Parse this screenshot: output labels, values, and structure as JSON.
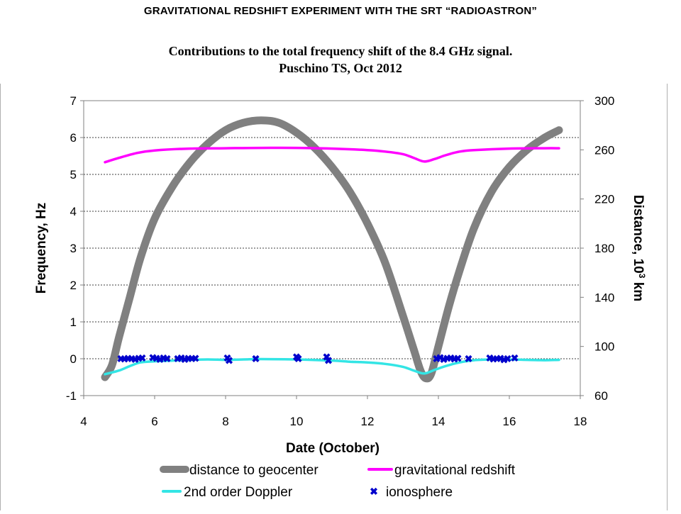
{
  "header": {
    "top_title": "GRAVITATIONAL REDSHIFT EXPERIMENT WITH THE SRT “RADIOASTRON”",
    "subtitle_line1": "Contributions to the total frequency shift of the 8.4 GHz signal.",
    "subtitle_line2": "Puschino TS, Oct 2012"
  },
  "chart_data": {
    "type": "line",
    "xlabel": "Date (October)",
    "ylabel": "Frequency, Hz",
    "y2label": "Distance, 10",
    "y2label_sup": "3",
    "y2label_suffix": " km",
    "xlim": [
      4,
      18
    ],
    "ylim": [
      -1,
      7
    ],
    "y2lim": [
      60,
      300
    ],
    "x_ticks": [
      4,
      6,
      8,
      10,
      12,
      14,
      16,
      18
    ],
    "y_ticks": [
      -1,
      0,
      1,
      2,
      3,
      4,
      5,
      6,
      7
    ],
    "y2_ticks": [
      60,
      100,
      140,
      180,
      220,
      260,
      300
    ],
    "grid": "horizontal dashed at y ticks",
    "legend_position": "bottom",
    "series": [
      {
        "name": "distance to geocenter",
        "axis": "right",
        "color": "#808080",
        "style": "thick-line",
        "x": [
          4.6,
          4.8,
          5.0,
          5.3,
          5.6,
          6.0,
          6.5,
          7.0,
          7.5,
          8.0,
          8.5,
          9.0,
          9.5,
          10.0,
          10.5,
          11.0,
          11.5,
          12.0,
          12.5,
          13.0,
          13.3,
          13.5,
          13.65,
          13.8,
          14.0,
          14.3,
          14.6,
          15.0,
          15.5,
          16.0,
          16.5,
          17.0,
          17.4
        ],
        "y": [
          75,
          85,
          108,
          140,
          172,
          204,
          230,
          250,
          265,
          276,
          282,
          284,
          282,
          274,
          262,
          246,
          226,
          200,
          168,
          125,
          98,
          80,
          74,
          78,
          100,
          133,
          162,
          196,
          226,
          246,
          260,
          270,
          276
        ]
      },
      {
        "name": "gravitational redshift",
        "axis": "left",
        "color": "#ff00ff",
        "style": "line",
        "x": [
          4.6,
          5.0,
          5.5,
          6.0,
          7.0,
          8.0,
          9.0,
          10.0,
          11.0,
          12.0,
          12.5,
          13.0,
          13.3,
          13.6,
          13.9,
          14.2,
          14.6,
          15.0,
          16.0,
          17.0,
          17.4
        ],
        "y": [
          5.33,
          5.45,
          5.58,
          5.65,
          5.7,
          5.71,
          5.72,
          5.72,
          5.7,
          5.66,
          5.62,
          5.55,
          5.45,
          5.35,
          5.42,
          5.52,
          5.62,
          5.66,
          5.7,
          5.71,
          5.71
        ]
      },
      {
        "name": "2nd order Doppler",
        "axis": "left",
        "color": "#33e5e5",
        "style": "line",
        "x": [
          4.6,
          5.0,
          5.3,
          5.6,
          6.0,
          6.5,
          7.0,
          7.5,
          8.0,
          8.5,
          9.0,
          10.0,
          11.0,
          11.5,
          12.0,
          12.5,
          13.0,
          13.3,
          13.6,
          13.9,
          14.2,
          14.6,
          15.0,
          15.5,
          16.0,
          16.5,
          17.0,
          17.4
        ],
        "y": [
          -0.42,
          -0.32,
          -0.2,
          -0.1,
          -0.07,
          -0.05,
          -0.03,
          -0.02,
          -0.03,
          -0.02,
          -0.01,
          -0.02,
          -0.05,
          -0.08,
          -0.1,
          -0.14,
          -0.22,
          -0.32,
          -0.4,
          -0.3,
          -0.2,
          -0.1,
          -0.04,
          -0.02,
          -0.02,
          -0.03,
          -0.04,
          -0.03
        ]
      },
      {
        "name": "ionosphere",
        "axis": "left",
        "color": "#0000cc",
        "style": "markers",
        "x": [
          5.05,
          5.15,
          5.25,
          5.35,
          5.45,
          5.55,
          5.65,
          5.95,
          6.05,
          6.15,
          6.25,
          6.35,
          6.65,
          6.75,
          6.85,
          6.95,
          7.05,
          7.15,
          8.05,
          8.1,
          8.85,
          10.0,
          10.05,
          10.85,
          10.9,
          13.95,
          14.05,
          14.15,
          14.25,
          14.35,
          14.45,
          14.55,
          14.85,
          15.45,
          15.55,
          15.65,
          15.75,
          15.85,
          15.95,
          16.15
        ],
        "y": [
          0.0,
          -0.01,
          0.01,
          0.0,
          -0.02,
          0.01,
          0.02,
          0.03,
          0.01,
          -0.02,
          0.02,
          0.0,
          0.0,
          0.02,
          -0.02,
          0.01,
          0.0,
          0.01,
          0.02,
          -0.05,
          0.0,
          0.05,
          0.0,
          0.05,
          -0.05,
          0.0,
          0.03,
          -0.02,
          0.01,
          0.02,
          -0.01,
          0.01,
          0.0,
          0.02,
          -0.01,
          0.0,
          0.01,
          -0.03,
          0.0,
          0.02
        ]
      }
    ]
  }
}
